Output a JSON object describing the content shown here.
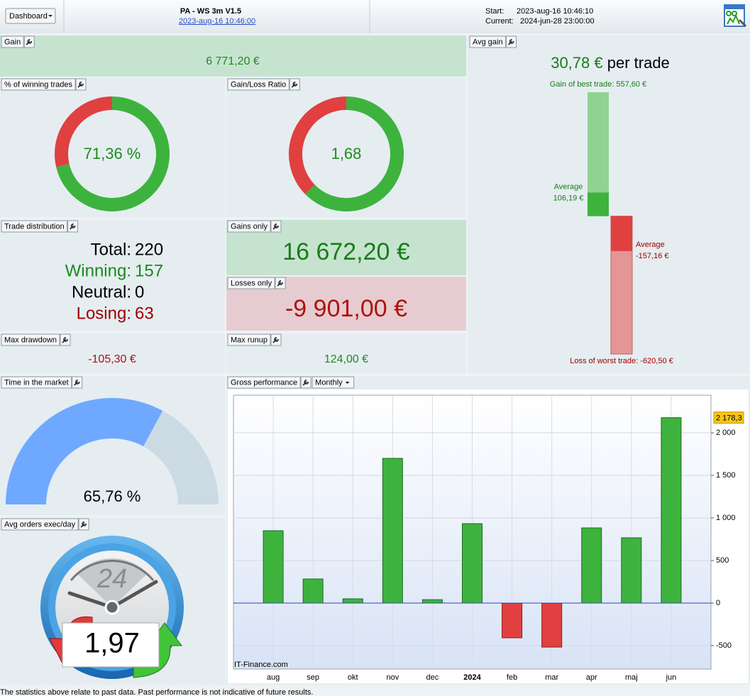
{
  "header": {
    "menu": "Dashboard",
    "title": "PA - WS 3m V1.5",
    "link": "2023-aug-16 10:46:00",
    "start_label": "Start:",
    "start": "2023-aug-16 10:46:10",
    "current_label": "Current:",
    "current": "2024-jun-28 23:00:00"
  },
  "gain": {
    "title": "Gain",
    "value": "6 771,20 €"
  },
  "winning_trades": {
    "title": "% of winning trades",
    "value": 71.36,
    "label": "71,36 %"
  },
  "gain_loss_ratio": {
    "title": "Gain/Loss Ratio",
    "value": 1.68,
    "label": "1,68"
  },
  "avg_gain": {
    "title": "Avg gain",
    "value": 30.78,
    "label": "30,78 €",
    "unit": "per trade",
    "best": {
      "caption": "Gain of best trade:",
      "value": 557.6,
      "label": "557,60 €"
    },
    "avg_win": {
      "caption": "Average",
      "value": 106.19,
      "label": "106,19 €"
    },
    "avg_loss": {
      "caption": "Average",
      "value": -157.16,
      "label": "-157,16 €"
    },
    "worst": {
      "caption": "Loss of worst trade:",
      "value": -620.5,
      "label": "-620,50 €"
    }
  },
  "trade_distribution": {
    "title": "Trade distribution",
    "rows": [
      {
        "label": "Total:",
        "value": 220,
        "color": "#000000"
      },
      {
        "label": "Winning:",
        "value": 157,
        "color": "#1a8a1a"
      },
      {
        "label": "Neutral:",
        "value": 0,
        "color": "#000000"
      },
      {
        "label": "Losing:",
        "value": 63,
        "color": "#a00000"
      }
    ]
  },
  "gains_only": {
    "title": "Gains only",
    "value": "16 672,20 €"
  },
  "losses_only": {
    "title": "Losses only",
    "value": "-9 901,00 €"
  },
  "max_drawdown": {
    "title": "Max drawdown",
    "value": "-105,30 €"
  },
  "max_runup": {
    "title": "Max runup",
    "value": "124,00 €"
  },
  "time_in_market": {
    "title": "Time in the market",
    "value": 65.76,
    "label": "65,76 %"
  },
  "avg_orders": {
    "title": "Avg orders exec/day",
    "clock": "24",
    "value": 1.97,
    "label": "1,97"
  },
  "chart_data": {
    "type": "bar",
    "title": "Gross performance",
    "period": "Monthly",
    "watermark": "IT-Finance.com",
    "categories": [
      "aug",
      "sep",
      "okt",
      "nov",
      "dec",
      "2024",
      "feb",
      "mar",
      "apr",
      "maj",
      "jun"
    ],
    "values": [
      850,
      283,
      50,
      1700,
      40,
      933,
      -408,
      -517,
      883,
      767,
      2178.3
    ],
    "value_labels": [
      null,
      null,
      null,
      null,
      null,
      null,
      null,
      null,
      null,
      null,
      "2 178,3"
    ],
    "colors": {
      "positive": "#3db33d",
      "negative": "#e04040"
    },
    "ylim": [
      -775,
      2442
    ],
    "yticks": [
      -500,
      0,
      500,
      {
        "value": 1000,
        "label": "1 000"
      },
      {
        "value": 1500,
        "label": "1 500"
      },
      {
        "value": 2000,
        "label": "2 000"
      }
    ],
    "grid": true
  },
  "footer": "The statistics above relate to past data. Past performance is not indicative of future results."
}
